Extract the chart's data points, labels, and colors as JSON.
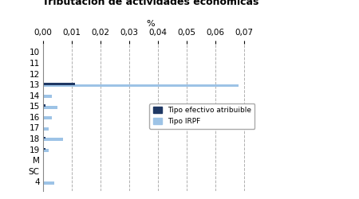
{
  "title": "Tributación de actividades económicas",
  "xlabel": "%",
  "categories": [
    "10",
    "11",
    "12",
    "13",
    "14",
    "15",
    "16",
    "17",
    "18",
    "19",
    "M",
    "SC",
    "4"
  ],
  "tipo_efectivo": [
    0.0,
    0.0,
    0.0,
    0.011,
    0.0004,
    0.0008,
    0.0,
    0.0,
    0.0008,
    0.0008,
    0.0,
    0.0,
    0.0003
  ],
  "tipo_irpf": [
    0.0,
    0.0,
    0.0,
    0.068,
    0.003,
    0.005,
    0.003,
    0.002,
    0.007,
    0.002,
    0.0,
    0.0,
    0.004
  ],
  "color_efectivo": "#1F3864",
  "color_irpf": "#9DC3E6",
  "xlim": [
    0,
    0.075
  ],
  "xticks": [
    0.0,
    0.01,
    0.02,
    0.03,
    0.04,
    0.05,
    0.06,
    0.07
  ],
  "xtick_labels": [
    "0,00",
    "0,01",
    "0,02",
    "0,03",
    "0,04",
    "0,05",
    "0,06",
    "0,07"
  ],
  "legend_label_efectivo": "Tipo efectivo atribuible",
  "legend_label_irpf": "Tipo IRPF",
  "background_color": "#ffffff",
  "grid_color": "#b0b0b0"
}
